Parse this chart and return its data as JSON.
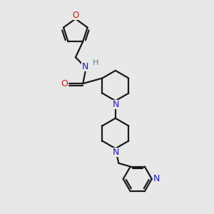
{
  "bg_color": "#e8e8e8",
  "bond_color": "#1a1a1a",
  "N_color": "#1a1acc",
  "O_color": "#cc1a1a",
  "H_color": "#4a8a8a",
  "line_width": 1.6,
  "figsize": [
    3.0,
    3.0
  ],
  "dpi": 100,
  "xlim": [
    0,
    10
  ],
  "ylim": [
    0,
    10
  ]
}
